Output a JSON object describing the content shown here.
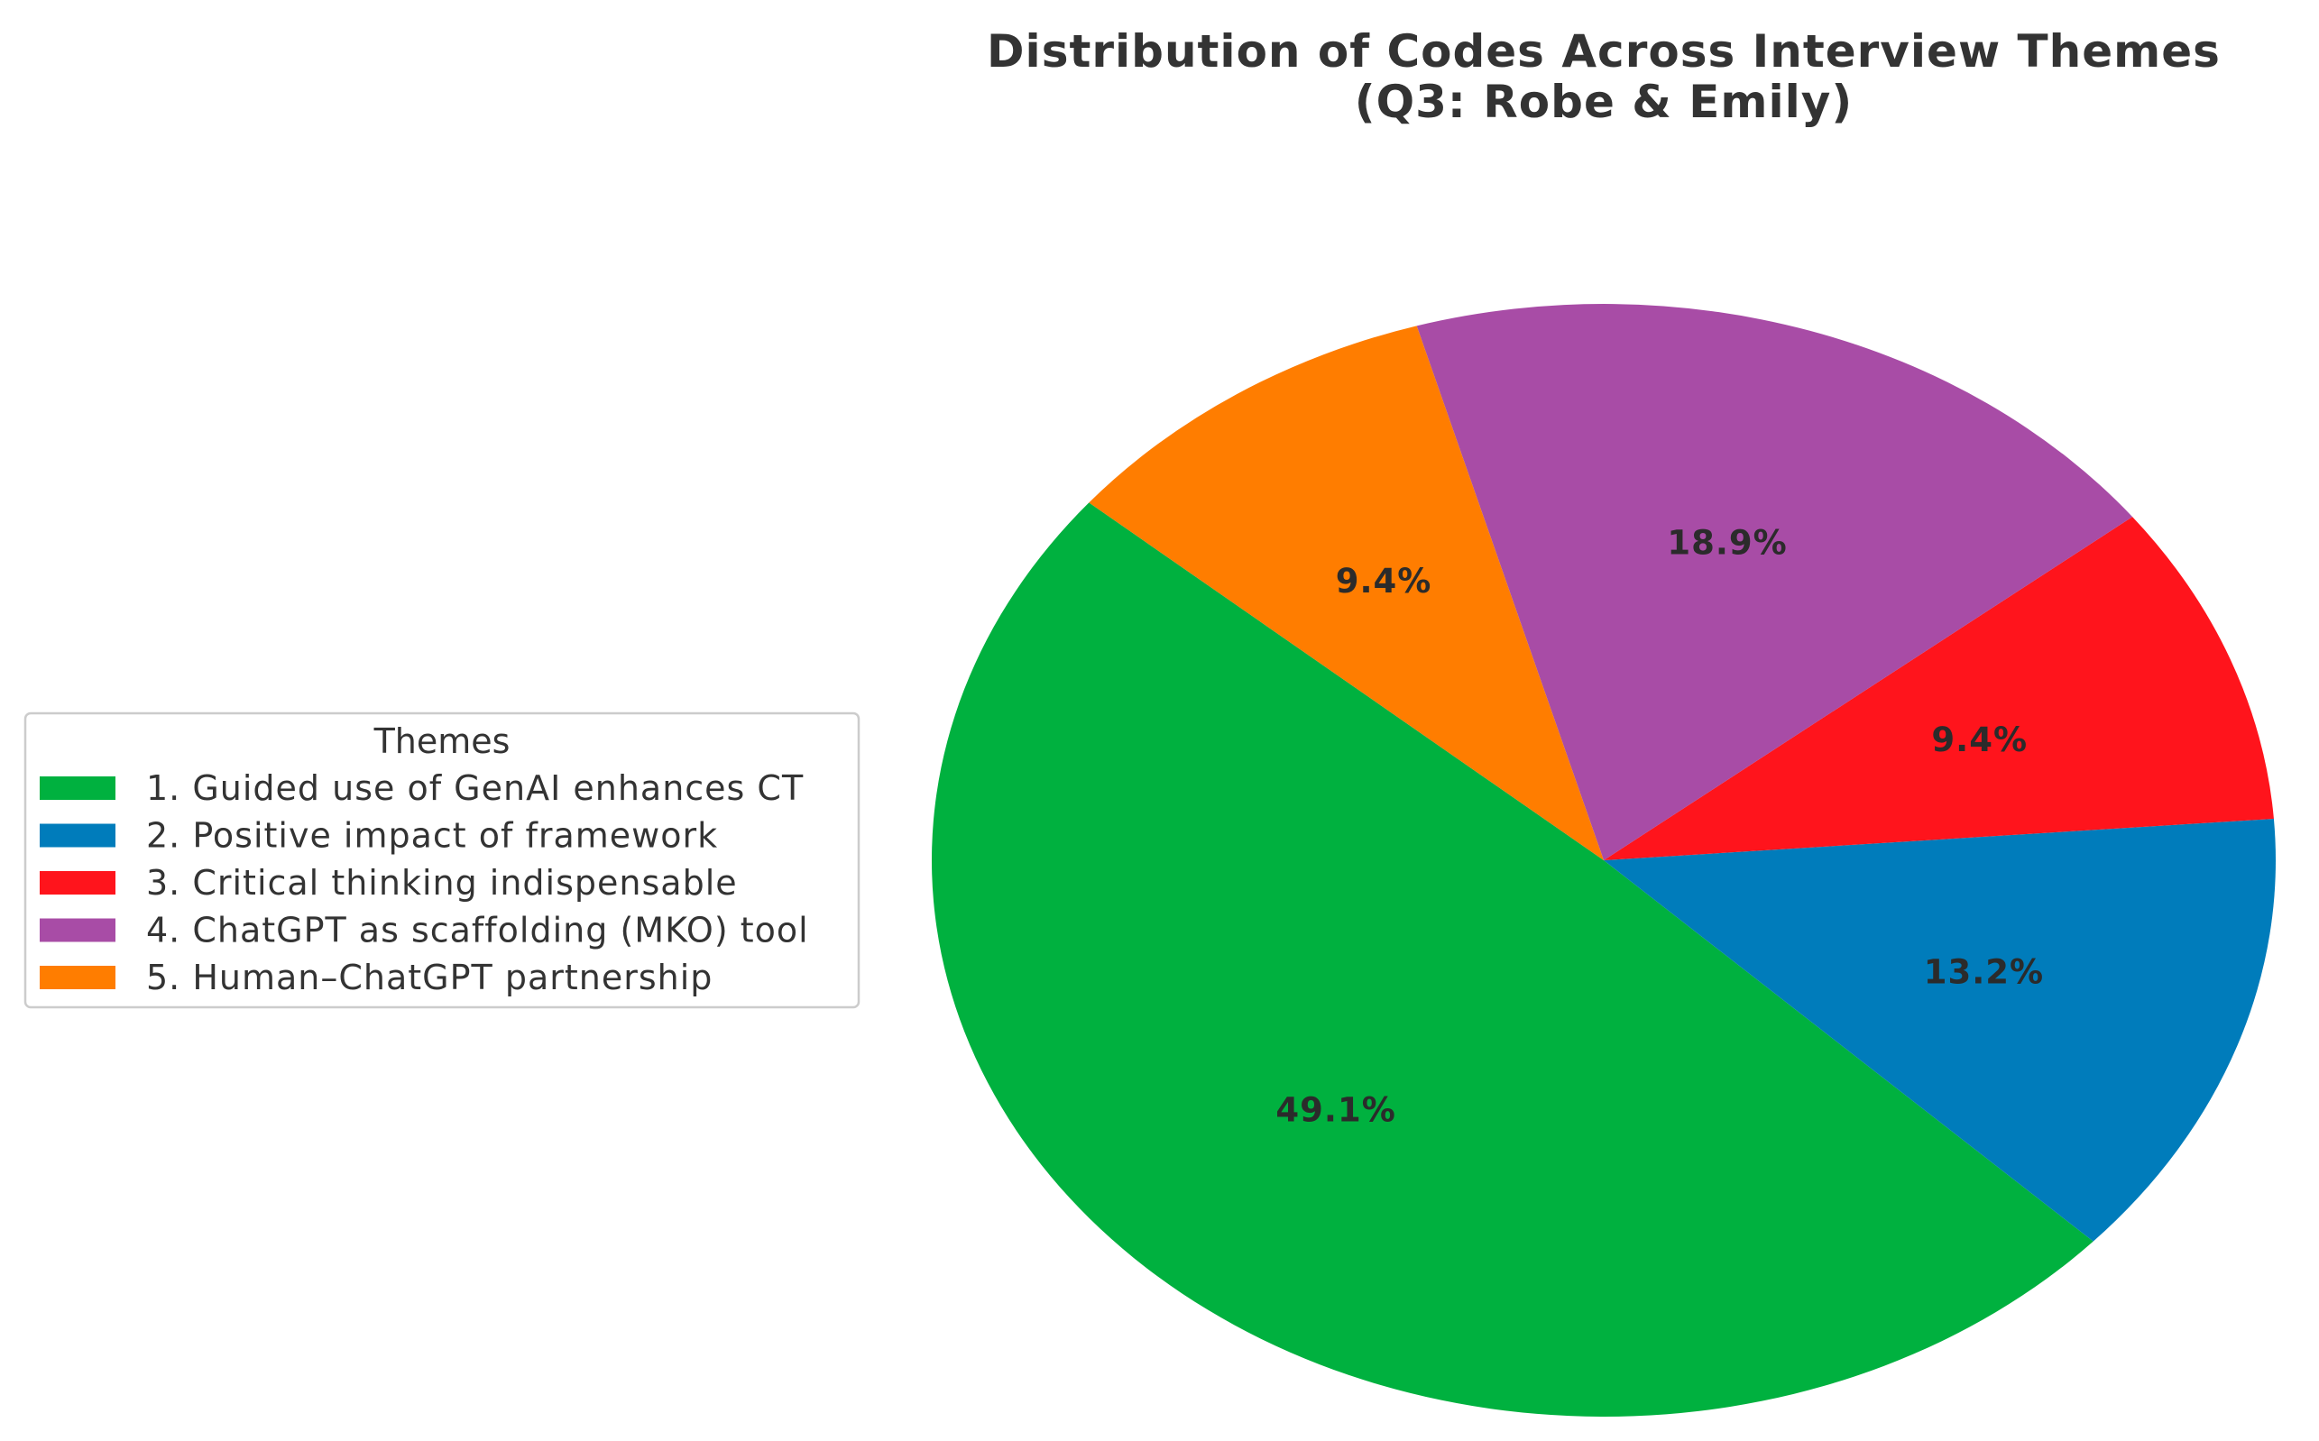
{
  "chart_data": {
    "type": "pie",
    "title": "Distribution of Codes Across Interview Themes",
    "subtitle": "(Q3: Robe & Emily)",
    "legend_title": "Themes",
    "legend_position": "left",
    "start_angle_deg": 140,
    "direction": "counterclockwise",
    "slices": [
      {
        "label": "1. Guided use of GenAI enhances CT",
        "value": 49.1,
        "display": "49.1%",
        "color": "#00b13f"
      },
      {
        "label": "2. Positive impact of framework",
        "value": 13.2,
        "display": "13.2%",
        "color": "#007cbb"
      },
      {
        "label": "3. Critical thinking indispensable",
        "value": 9.4,
        "display": "9.4%",
        "color": "#ff141c"
      },
      {
        "label": "4. ChatGPT as scaffolding (MKO) tool",
        "value": 18.9,
        "display": "18.9%",
        "color": "#a84ca6"
      },
      {
        "label": "5. Human–ChatGPT partnership",
        "value": 9.4,
        "display": "9.4%",
        "color": "#ff7d00"
      }
    ]
  }
}
